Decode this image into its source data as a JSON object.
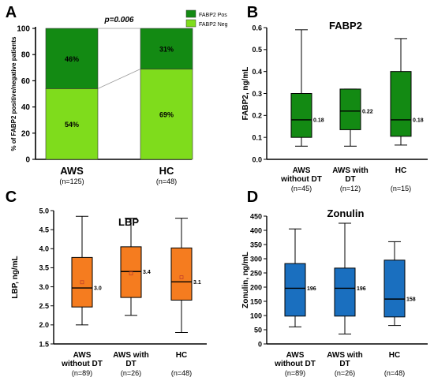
{
  "chart_data": [
    {
      "panel_letter": "A",
      "type": "bar",
      "stacked": true,
      "ylabel": "% of FABP2 positive/negative patients",
      "ylim": [
        0,
        100
      ],
      "yticks": [
        "0",
        "20",
        "40",
        "60",
        "80",
        "100"
      ],
      "categories": [
        "AWS",
        "HC"
      ],
      "category_notes": [
        "(n=125)",
        "(n=48)"
      ],
      "series": [
        {
          "name": "FABP2 Neg",
          "values": [
            54,
            69
          ],
          "labels": [
            "54%",
            "69%"
          ],
          "color": "#7fdc1c"
        },
        {
          "name": "FABP2 Pos",
          "values": [
            46,
            31
          ],
          "labels": [
            "46%",
            "31%"
          ],
          "color": "#138a13"
        }
      ],
      "annotation": "p=0.006",
      "legend_position": "top-right"
    },
    {
      "panel_letter": "B",
      "type": "box",
      "title": "FABP2",
      "ylabel": "FABP2, ng/mL",
      "ylim": [
        0,
        0.6
      ],
      "yticks": [
        "0.0",
        "0.1",
        "0.2",
        "0.3",
        "0.4",
        "0.5",
        "0.6"
      ],
      "color": "#138a13",
      "categories": [
        {
          "line1": "AWS",
          "line2": "without DT",
          "n": "(n=45)",
          "min": 0.06,
          "q1": 0.1,
          "median": 0.18,
          "q3": 0.3,
          "max": 0.59,
          "median_label": "0.18"
        },
        {
          "line1": "AWS with",
          "line2": "DT",
          "n": "(n=12)",
          "min": 0.06,
          "q1": 0.135,
          "median": 0.22,
          "q3": 0.32,
          "max": 0.32,
          "median_label": "0.22"
        },
        {
          "line1": "HC",
          "line2": "",
          "n": "(n=15)",
          "min": 0.065,
          "q1": 0.105,
          "median": 0.18,
          "q3": 0.4,
          "max": 0.55,
          "median_label": "0.18"
        }
      ]
    },
    {
      "panel_letter": "C",
      "type": "box",
      "title": "LBP",
      "ylabel": "LBP, ng/mL",
      "ylim": [
        1.5,
        5.0
      ],
      "yticks": [
        "1.5",
        "2.0",
        "2.5",
        "3.0",
        "3.5",
        "4.0",
        "4.5",
        "5.0"
      ],
      "color": "#f57c1f",
      "categories": [
        {
          "line1": "AWS",
          "line2": "without DT",
          "n": "(n=89)",
          "min": 2.0,
          "q1": 2.47,
          "median": 2.97,
          "q3": 3.77,
          "max": 4.85,
          "mean": 3.12,
          "median_label": "3.0"
        },
        {
          "line1": "AWS with",
          "line2": "DT",
          "n": "(n=26)",
          "min": 2.25,
          "q1": 2.72,
          "median": 3.4,
          "q3": 4.05,
          "max": 4.8,
          "mean": 3.35,
          "median_label": "3.4"
        },
        {
          "line1": "HC",
          "line2": "",
          "n": "(n=48)",
          "min": 1.8,
          "q1": 2.65,
          "median": 3.13,
          "q3": 4.02,
          "max": 4.8,
          "mean": 3.25,
          "median_label": "3.1"
        }
      ]
    },
    {
      "panel_letter": "D",
      "type": "box",
      "title": "Zonulin",
      "ylabel": "Zonulin, ng/mL",
      "ylim": [
        0,
        450
      ],
      "yticks": [
        "0",
        "50",
        "100",
        "150",
        "200",
        "250",
        "300",
        "350",
        "400",
        "450"
      ],
      "color": "#1a6fbf",
      "categories": [
        {
          "line1": "AWS",
          "line2": "without DT",
          "n": "(n=89)",
          "min": 60,
          "q1": 98,
          "median": 196,
          "q3": 283,
          "max": 405,
          "median_label": "196"
        },
        {
          "line1": "AWS with",
          "line2": "DT",
          "n": "(n=26)",
          "min": 35,
          "q1": 98,
          "median": 196,
          "q3": 267,
          "max": 425,
          "median_label": "196"
        },
        {
          "line1": "HC",
          "line2": "",
          "n": "(n=48)",
          "min": 65,
          "q1": 95,
          "median": 158,
          "q3": 295,
          "max": 360,
          "median_label": "158"
        }
      ]
    }
  ]
}
